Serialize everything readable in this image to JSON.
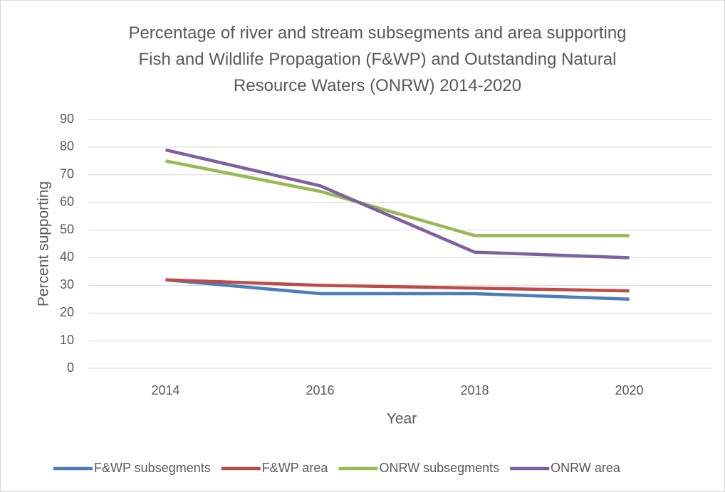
{
  "chart_data": {
    "type": "line",
    "title": "Percentage of river and stream subsegments and area supporting Fish and Wildlife Propagation (F&WP) and Outstanding Natural Resource Waters (ONRW) 2014-2020",
    "x_label": "Year",
    "y_label": "Percent supporting",
    "categories": [
      "2014",
      "2016",
      "2018",
      "2020"
    ],
    "series": [
      {
        "name": "F&WP subsegments",
        "color": "#4a7ebb",
        "values": [
          32,
          27,
          27,
          25
        ]
      },
      {
        "name": "F&WP area",
        "color": "#be4b48",
        "values": [
          32,
          30,
          29,
          28
        ]
      },
      {
        "name": "ONRW subsegments",
        "color": "#98b954",
        "values": [
          75,
          64,
          48,
          48
        ]
      },
      {
        "name": "ONRW area",
        "color": "#7d60a0",
        "values": [
          79,
          66,
          42,
          40
        ]
      }
    ],
    "ylim": [
      0,
      90
    ],
    "yticks": [
      0,
      10,
      20,
      30,
      40,
      50,
      60,
      70,
      80,
      90
    ],
    "grid": true,
    "legend": "bottom"
  }
}
